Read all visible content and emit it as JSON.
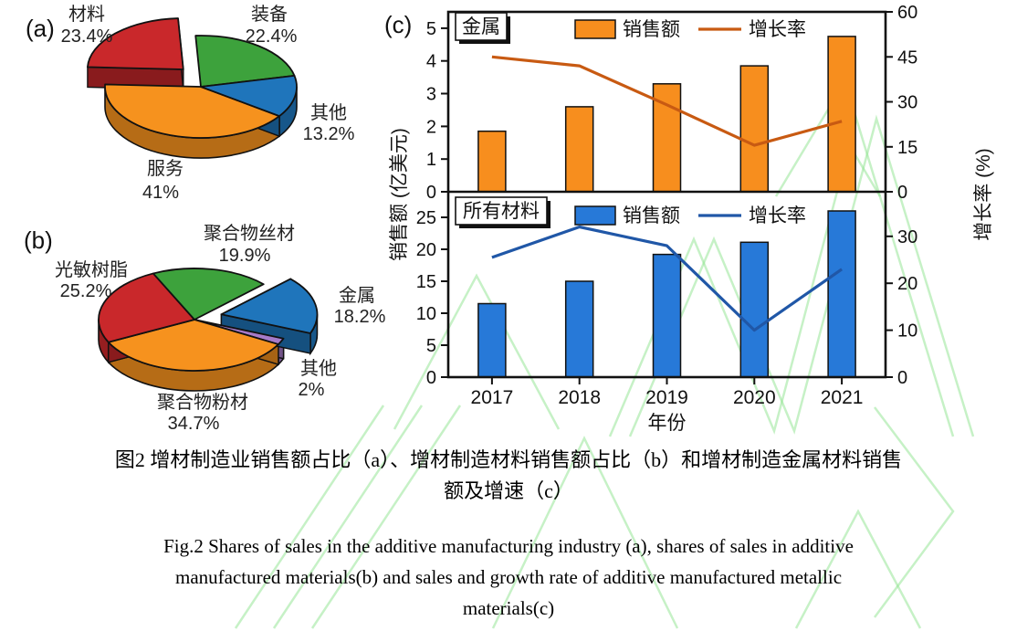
{
  "figure": {
    "panel_labels": [
      "(a)",
      "(b)",
      "(c)"
    ],
    "caption_cn": [
      "图2 增材制造业销售额占比（a）、增材制造材料销售额占比（b）和增材制造金属材料销售",
      "额及增速（c）"
    ],
    "caption_en": [
      "Fig.2 Shares of sales in the additive manufacturing industry (a), shares of sales in additive",
      "manufactured materials(b) and sales and growth rate of additive manufactured metallic",
      "materials(c)"
    ]
  },
  "colors": {
    "orange": "#f6921e",
    "red": "#c9282b",
    "green": "#3da23c",
    "blue": "#1f75bb",
    "purple": "#a77bc9",
    "bar_orange": "#f78e1e",
    "line_orange": "#c85a12",
    "bar_blue": "#2779d8",
    "line_blue": "#2057a7",
    "watermark": "#8de48d"
  },
  "chart_data": [
    {
      "id": "a",
      "type": "pie",
      "unit": "%",
      "slices": [
        {
          "label": "服务",
          "value": 41,
          "color": "#f6921e",
          "exploded": false
        },
        {
          "label": "材料",
          "value": 23.4,
          "color": "#c9282b",
          "exploded": true
        },
        {
          "label": "装备",
          "value": 22.4,
          "color": "#3da23c",
          "exploded": false
        },
        {
          "label": "其他",
          "value": 13.2,
          "color": "#1f75bb",
          "exploded": false
        }
      ]
    },
    {
      "id": "b",
      "type": "pie",
      "unit": "%",
      "slices": [
        {
          "label": "其他",
          "value": 2,
          "color": "#a77bc9",
          "exploded": false
        },
        {
          "label": "聚合物粉材",
          "value": 34.7,
          "color": "#f6921e",
          "exploded": false
        },
        {
          "label": "光敏树脂",
          "value": 25.2,
          "color": "#c9282b",
          "exploded": false
        },
        {
          "label": "聚合物丝材",
          "value": 19.9,
          "color": "#3da23c",
          "exploded": false
        },
        {
          "label": "金属",
          "value": 18.2,
          "color": "#1f75bb",
          "exploded": true
        }
      ]
    },
    {
      "id": "c",
      "type": "bar+line",
      "categories": [
        "2017",
        "2018",
        "2019",
        "2020",
        "2021"
      ],
      "xlabel": "年份",
      "ylabel_left": "销售额 (亿美元)",
      "ylabel_right": "增长率 (%)",
      "panels": [
        {
          "inset_label": "金属",
          "legend": [
            "销售额",
            "增长率"
          ],
          "bars": [
            1.85,
            2.6,
            3.3,
            3.85,
            4.75
          ],
          "line": [
            45,
            42,
            29,
            15.5,
            23.5
          ],
          "bar_color": "#f78e1e",
          "line_color": "#c85a12",
          "left_ticks": [
            0,
            1,
            2,
            3,
            4,
            5
          ],
          "right_ticks": [
            0,
            15,
            30,
            45,
            60
          ],
          "left_range": [
            0,
            5.5
          ],
          "right_range": [
            0,
            60
          ]
        },
        {
          "inset_label": "所有材料",
          "legend": [
            "销售额",
            "增长率"
          ],
          "bars": [
            11.5,
            15,
            19.2,
            21.1,
            26
          ],
          "line": [
            25.5,
            32,
            28,
            10,
            23
          ],
          "bar_color": "#2779d8",
          "line_color": "#2057a7",
          "left_ticks": [
            0,
            5,
            10,
            15,
            20,
            25
          ],
          "right_ticks": [
            0,
            10,
            20,
            30
          ],
          "left_range": [
            0,
            29
          ],
          "right_range": [
            0,
            39.5
          ]
        }
      ]
    }
  ]
}
